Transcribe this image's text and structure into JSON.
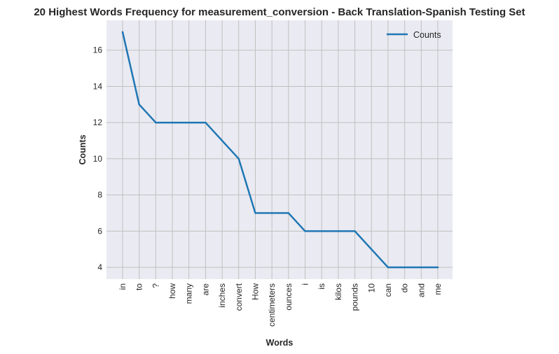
{
  "chart_data": {
    "type": "line",
    "title": "20 Highest Words Frequency for measurement_conversion - Back Translation-Spanish Testing Set",
    "xlabel": "Words",
    "ylabel": "Counts",
    "categories": [
      "in",
      "to",
      "?",
      "how",
      "many",
      "are",
      "inches",
      "convert",
      "How",
      "centimeters",
      "ounces",
      "i",
      "is",
      "kilos",
      "pounds",
      "10",
      "can",
      "do",
      "and",
      "me"
    ],
    "series": [
      {
        "name": "Counts",
        "values": [
          17,
          13,
          12,
          12,
          12,
          12,
          11,
          10,
          7,
          7,
          7,
          6,
          6,
          6,
          6,
          5,
          4,
          4,
          4,
          4
        ]
      }
    ],
    "yticks": [
      4,
      6,
      8,
      10,
      12,
      14,
      16
    ],
    "ylim": [
      3.35,
      17.65
    ],
    "grid": true,
    "legend_position": "upper-right",
    "colors": {
      "line": "#1f77b4",
      "plot_background": "#eaeaf2",
      "grid": "#c0c0c0"
    }
  }
}
